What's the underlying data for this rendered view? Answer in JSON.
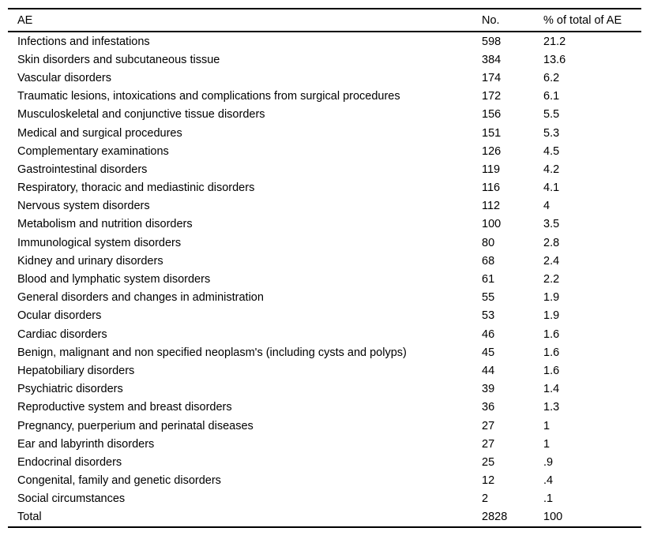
{
  "page": {
    "background_color": "#ffffff",
    "text_color": "#000000",
    "rule_color": "#000000"
  },
  "table": {
    "columns": [
      {
        "key": "ae",
        "label": "AE"
      },
      {
        "key": "no",
        "label": "No."
      },
      {
        "key": "pct",
        "label": "% of total of AE"
      }
    ],
    "rows": [
      {
        "ae": "Infections and infestations",
        "no": "598",
        "pct": "21.2"
      },
      {
        "ae": "Skin disorders and subcutaneous tissue",
        "no": "384",
        "pct": "13.6"
      },
      {
        "ae": "Vascular disorders",
        "no": "174",
        "pct": "6.2"
      },
      {
        "ae": "Traumatic lesions, intoxications and complications from surgical procedures",
        "no": "172",
        "pct": "6.1"
      },
      {
        "ae": "Musculoskeletal and conjunctive tissue disorders",
        "no": "156",
        "pct": "5.5"
      },
      {
        "ae": "Medical and surgical procedures",
        "no": "151",
        "pct": "5.3"
      },
      {
        "ae": "Complementary examinations",
        "no": "126",
        "pct": "4.5"
      },
      {
        "ae": "Gastrointestinal disorders",
        "no": "119",
        "pct": "4.2"
      },
      {
        "ae": "Respiratory, thoracic and mediastinic disorders",
        "no": "116",
        "pct": "4.1"
      },
      {
        "ae": "Nervous system disorders",
        "no": "112",
        "pct": "4"
      },
      {
        "ae": "Metabolism and nutrition disorders",
        "no": "100",
        "pct": "3.5"
      },
      {
        "ae": "Immunological system disorders",
        "no": "80",
        "pct": "2.8"
      },
      {
        "ae": "Kidney and urinary disorders",
        "no": "68",
        "pct": "2.4"
      },
      {
        "ae": "Blood and lymphatic system disorders",
        "no": "61",
        "pct": "2.2"
      },
      {
        "ae": "General disorders and changes in administration",
        "no": "55",
        "pct": "1.9"
      },
      {
        "ae": "Ocular disorders",
        "no": "53",
        "pct": "1.9"
      },
      {
        "ae": "Cardiac disorders",
        "no": "46",
        "pct": "1.6"
      },
      {
        "ae": "Benign, malignant and non specified neoplasm's (including cysts and polyps)",
        "no": "45",
        "pct": "1.6"
      },
      {
        "ae": "Hepatobiliary disorders",
        "no": "44",
        "pct": "1.6"
      },
      {
        "ae": "Psychiatric disorders",
        "no": "39",
        "pct": "1.4"
      },
      {
        "ae": "Reproductive system and breast disorders",
        "no": "36",
        "pct": "1.3"
      },
      {
        "ae": "Pregnancy, puerperium and perinatal diseases",
        "no": "27",
        "pct": "1"
      },
      {
        "ae": "Ear and labyrinth disorders",
        "no": "27",
        "pct": "1"
      },
      {
        "ae": "Endocrinal disorders",
        "no": "25",
        "pct": ".9"
      },
      {
        "ae": "Congenital, family and genetic disorders",
        "no": "12",
        "pct": ".4"
      },
      {
        "ae": "Social circumstances",
        "no": "2",
        "pct": ".1"
      }
    ],
    "total_row": {
      "ae": "Total",
      "no": "2828",
      "pct": "100"
    }
  }
}
